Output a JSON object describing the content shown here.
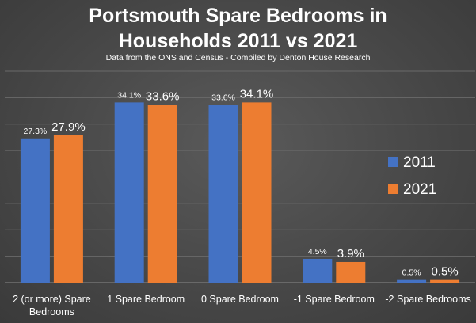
{
  "chart_data": {
    "type": "bar",
    "title_line1": "Portsmouth Spare Bedrooms in",
    "title_line2": "Households 2011 vs 2021",
    "subtitle": "Data from the ONS and Census - Compiled by Denton House Research",
    "categories": [
      [
        "2 (or more) Spare",
        "Bedrooms"
      ],
      [
        "1 Spare Bedroom"
      ],
      [
        "0 Spare Bedroom"
      ],
      [
        "-1 Spare Bedroom"
      ],
      [
        "-2 Spare Bedrooms"
      ]
    ],
    "series": [
      {
        "name": "2011",
        "color": "#4472c4",
        "values": [
          27.3,
          34.1,
          33.6,
          4.5,
          0.5
        ],
        "labels": [
          "27.3%",
          "34.1%",
          "33.6%",
          "4.5%",
          "0.5%"
        ]
      },
      {
        "name": "2021",
        "color": "#ed7d31",
        "values": [
          27.9,
          33.6,
          34.1,
          3.9,
          0.5
        ],
        "labels": [
          "27.9%",
          "33.6%",
          "34.1%",
          "3.9%",
          "0.5%"
        ]
      }
    ],
    "ylim": [
      0,
      40
    ],
    "grid": true,
    "legend_position": "right"
  }
}
